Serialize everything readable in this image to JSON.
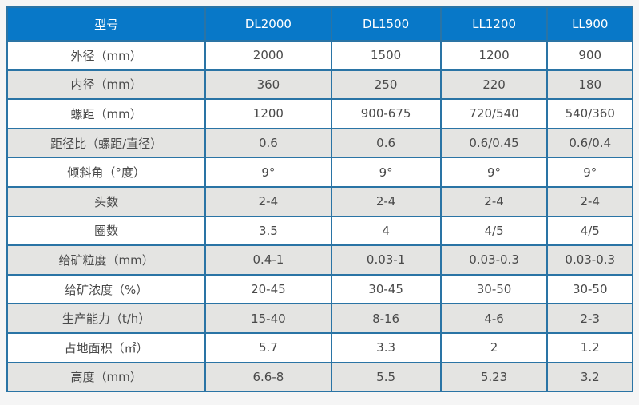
{
  "theme": {
    "page_bg": "#f5f5f5",
    "header_bg": "#0878c8",
    "header_text": "#ffffff",
    "border_color": "#2a74a5",
    "row_bg": "#ffffff",
    "row_alt_bg": "#e4e4e2",
    "cell_text": "#4a4a4a"
  },
  "chart_data": {
    "type": "table",
    "columns": [
      "型号",
      "DL2000",
      "DL1500",
      "LL1200",
      "LL900"
    ],
    "rows": [
      {
        "label": "外径（mm）",
        "values": [
          "2000",
          "1500",
          "1200",
          "900"
        ]
      },
      {
        "label": "内径（mm）",
        "values": [
          "360",
          "250",
          "220",
          "180"
        ]
      },
      {
        "label": "螺距（mm）",
        "values": [
          "1200",
          "900-675",
          "720/540",
          "540/360"
        ]
      },
      {
        "label": "距径比（螺距/直径）",
        "values": [
          "0.6",
          "0.6",
          "0.6/0.45",
          "0.6/0.4"
        ]
      },
      {
        "label": "倾斜角（°度）",
        "values": [
          "9°",
          "9°",
          "9°",
          "9°"
        ]
      },
      {
        "label": "头数",
        "values": [
          "2-4",
          "2-4",
          "2-4",
          "2-4"
        ]
      },
      {
        "label": "圈数",
        "values": [
          "3.5",
          "4",
          "4/5",
          "4/5"
        ]
      },
      {
        "label": "给矿粒度（mm）",
        "values": [
          "0.4-1",
          "0.03-1",
          "0.03-0.3",
          "0.03-0.3"
        ]
      },
      {
        "label": "给矿浓度（%）",
        "values": [
          "20-45",
          "30-45",
          "30-50",
          "30-50"
        ]
      },
      {
        "label": "生产能力（t/h）",
        "values": [
          "15-40",
          "8-16",
          "4-6",
          "2-3"
        ]
      },
      {
        "label": "占地面积（㎡）",
        "values": [
          "5.7",
          "3.3",
          "2",
          "1.2"
        ]
      },
      {
        "label": "高度（mm）",
        "values": [
          "6.6-8",
          "5.5",
          "5.23",
          "3.2"
        ]
      }
    ]
  }
}
